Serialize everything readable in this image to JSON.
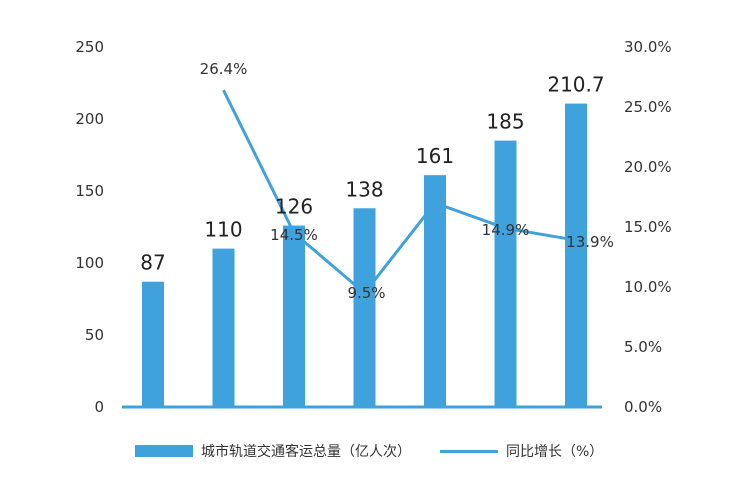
{
  "chart_data": {
    "type": "bar+line",
    "categories": [
      "",
      "",
      "",
      "",
      "",
      "",
      ""
    ],
    "series": [
      {
        "name": "城市轨道交通客运总量（亿人次）",
        "type": "bar",
        "axis": "left",
        "values": [
          87,
          110,
          126,
          138,
          161,
          185,
          210.7
        ],
        "labels": [
          "87",
          "110",
          "126",
          "138",
          "161",
          "185",
          "210.7"
        ]
      },
      {
        "name": "同比增长（%）",
        "type": "line",
        "axis": "right",
        "values": [
          null,
          26.4,
          14.5,
          9.5,
          17.0,
          14.9,
          13.9
        ],
        "labels": [
          "",
          "26.4%",
          "14.5%",
          "9.5%",
          "",
          "14.9%",
          "13.9%"
        ]
      }
    ],
    "y_left": {
      "min": 0,
      "max": 250,
      "ticks": [
        "0",
        "50",
        "100",
        "150",
        "200",
        "250"
      ]
    },
    "y_right": {
      "min": 0,
      "max": 30,
      "ticks": [
        "0.0%",
        "5.0%",
        "10.0%",
        "15.0%",
        "20.0%",
        "25.0%",
        "30.0%"
      ]
    },
    "colors": {
      "bar": "#3fa2dc",
      "line": "#3fa2dc",
      "axis": "#3fa2dc"
    },
    "legend_position": "bottom",
    "grid": false
  },
  "legend": {
    "bar_label": "城市轨道交通客运总量（亿人次）",
    "line_label": "同比增长（%）"
  }
}
